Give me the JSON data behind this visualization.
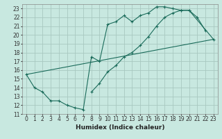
{
  "xlabel": "Humidex (Indice chaleur)",
  "background_color": "#c8e8e0",
  "grid_color": "#a8c8c0",
  "line_color": "#1a6b5a",
  "xlim": [
    -0.5,
    23.5
  ],
  "ylim": [
    11,
    23.5
  ],
  "xticks": [
    0,
    1,
    2,
    3,
    4,
    5,
    6,
    7,
    8,
    9,
    10,
    11,
    12,
    13,
    14,
    15,
    16,
    17,
    18,
    19,
    20,
    21,
    22,
    23
  ],
  "yticks": [
    11,
    12,
    13,
    14,
    15,
    16,
    17,
    18,
    19,
    20,
    21,
    22,
    23
  ],
  "line1_x": [
    0,
    1,
    2,
    3,
    4,
    5,
    6,
    7,
    8,
    9,
    10,
    11,
    12,
    13,
    14,
    15,
    16,
    17,
    18,
    19,
    20,
    21,
    22
  ],
  "line1_y": [
    15.5,
    14.0,
    13.5,
    12.5,
    12.5,
    12.0,
    11.7,
    11.5,
    17.5,
    17.0,
    21.2,
    21.5,
    22.2,
    21.5,
    22.2,
    22.5,
    23.2,
    23.2,
    23.0,
    22.8,
    22.8,
    22.0,
    20.5
  ],
  "line2_x": [
    8,
    9,
    10,
    11,
    12,
    13,
    14,
    15,
    16,
    17,
    18,
    19,
    20,
    23
  ],
  "line2_y": [
    13.5,
    14.5,
    15.8,
    16.5,
    17.5,
    18.0,
    18.8,
    19.8,
    21.0,
    22.0,
    22.5,
    22.8,
    22.8,
    19.5
  ],
  "line3_x": [
    0,
    23
  ],
  "line3_y": [
    15.5,
    19.5
  ]
}
